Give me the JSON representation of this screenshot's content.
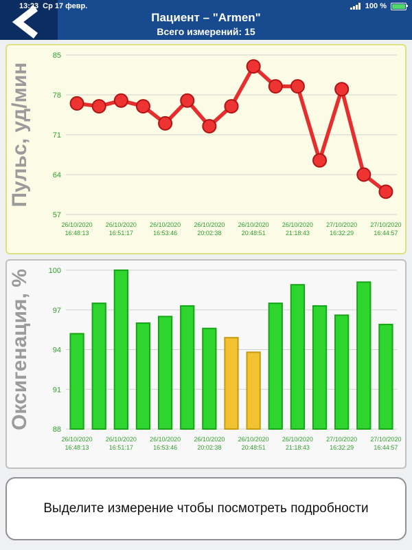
{
  "status_bar": {
    "time": "13:23",
    "date": "Ср 17 февр.",
    "battery": "100 %"
  },
  "header": {
    "title": "Пациент – \"Armen\"",
    "subtitle": "Всего измерений: 15"
  },
  "footer": {
    "message": "Выделите измерение чтобы посмотреть подробности"
  },
  "colors": {
    "header_blue": "#184a90",
    "back_navy": "#0c2d62",
    "battery_green": "#53d86a"
  },
  "chart_data": [
    {
      "type": "line",
      "title": "",
      "ylabel": "Пульс, уд/мин",
      "ylim": [
        57,
        85
      ],
      "yticks": [
        57,
        64,
        71,
        78,
        85
      ],
      "grid": true,
      "tick_color": "#2fa12f",
      "line_color": "#e62e2e",
      "marker_fill": "#ee3333",
      "marker_stroke": "#b01414",
      "x_labels": [
        "26/10/2020 16:48:13",
        "26/10/2020 16:51:17",
        "26/10/2020 16:53:46",
        "26/10/2020 20:02:38",
        "26/10/2020 20:48:51",
        "26/10/2020 21:18:43",
        "27/10/2020 16:32:29",
        "27/10/2020 16:44:57"
      ],
      "values": [
        76.5,
        76,
        77,
        76,
        73,
        77,
        72.5,
        76,
        83,
        79.5,
        79.5,
        66.5,
        79,
        64,
        61
      ]
    },
    {
      "type": "bar",
      "title": "",
      "ylabel": "Оксигенация, %",
      "ylim": [
        88,
        100
      ],
      "yticks": [
        88,
        91,
        94,
        97,
        100
      ],
      "grid": true,
      "tick_color": "#2fa12f",
      "bar_fill": "#2ed52e",
      "bar_stroke": "#17a517",
      "highlight_fill": "#f2c230",
      "highlight_stroke": "#c79a12",
      "x_labels": [
        "26/10/2020 16:48:13",
        "26/10/2020 16:51:17",
        "26/10/2020 16:53:46",
        "26/10/2020 20:02:38",
        "26/10/2020 20:48:51",
        "26/10/2020 21:18:43",
        "27/10/2020 16:32:29",
        "27/10/2020 16:44:57"
      ],
      "values": [
        95.2,
        97.5,
        100,
        96,
        96.5,
        97.3,
        95.6,
        94.9,
        93.8,
        97.5,
        98.9,
        97.3,
        96.6,
        99.1,
        95.9
      ],
      "bar_colors": [
        "green",
        "green",
        "green",
        "green",
        "green",
        "green",
        "green",
        "yellow",
        "yellow",
        "green",
        "green",
        "green",
        "green",
        "green",
        "green"
      ]
    }
  ]
}
